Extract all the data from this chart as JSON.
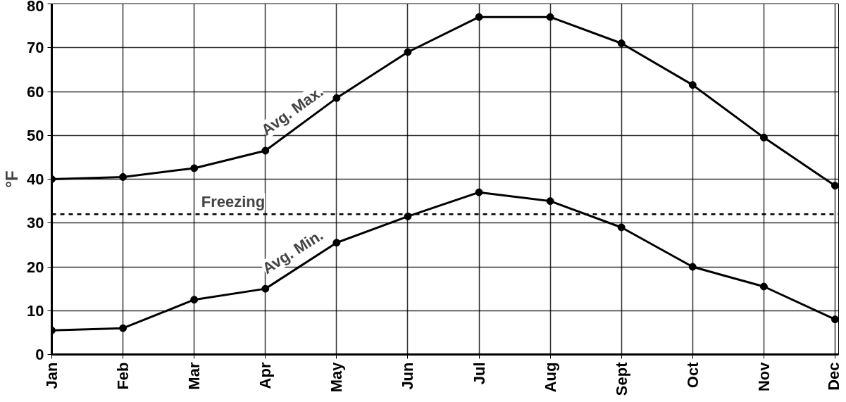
{
  "chart_data": {
    "type": "line",
    "ylabel": "°F",
    "categories": [
      "Jan",
      "Feb",
      "Mar",
      "Apr",
      "May",
      "Jun",
      "Jul",
      "Aug",
      "Sept",
      "Oct",
      "Nov",
      "Dec"
    ],
    "series": [
      {
        "name": "Avg. Max.",
        "color": "#000000",
        "values": [
          40,
          40.5,
          42.5,
          46.5,
          58.5,
          69,
          77,
          77,
          71,
          61.5,
          49.5,
          38.5
        ]
      },
      {
        "name": "Avg. Min.",
        "color": "#000000",
        "values": [
          5.5,
          6,
          12.5,
          15,
          25.5,
          31.5,
          37,
          35,
          29,
          20,
          15.5,
          8
        ]
      }
    ],
    "ylim": [
      0,
      80
    ],
    "yticks": [
      0,
      10,
      20,
      30,
      40,
      50,
      60,
      70,
      80
    ],
    "grid": true,
    "marker": "circle",
    "line_style": "solid",
    "ref_lines": [
      {
        "axis": "y",
        "value": 32,
        "label": "Freezing",
        "line_style": "dashed",
        "color": "#000000"
      }
    ]
  }
}
